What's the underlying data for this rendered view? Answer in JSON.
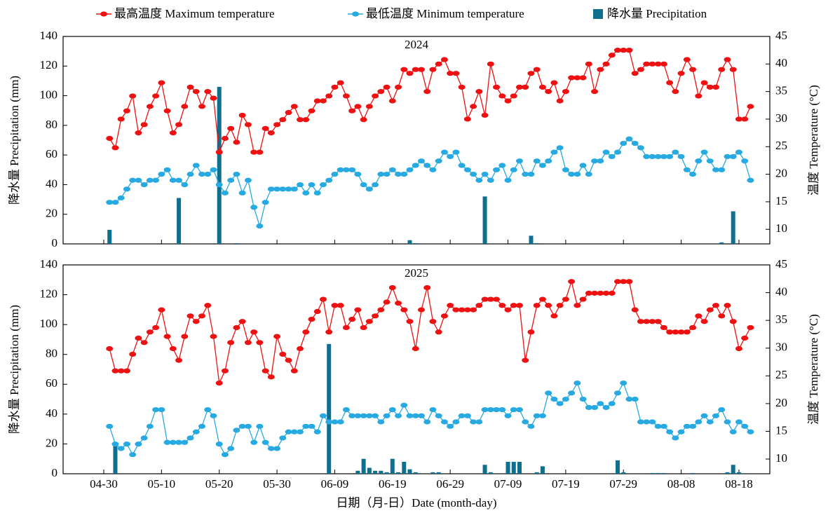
{
  "chart_data": [
    {
      "type": "combo",
      "title": "2024",
      "ylabel": "降水量 Precipitation (mm)",
      "y2label": "温度 Temperature (°C)",
      "ylim": [
        0,
        140
      ],
      "yticks": [
        0,
        20,
        40,
        60,
        80,
        100,
        120,
        140
      ],
      "y2lim": [
        7.36,
        45
      ],
      "y2ticks": [
        10,
        15,
        20,
        25,
        30,
        35,
        40,
        45
      ],
      "series": [
        {
          "name": "最高温度 Maximum temperature",
          "type": "line",
          "axis": "y2",
          "color": "#ee1111",
          "values": [
            null,
            26.5,
            24.8,
            30,
            31.5,
            34.2,
            27.5,
            29,
            32.3,
            34.2,
            36.6,
            31.5,
            27.5,
            29,
            32.3,
            35.8,
            35,
            32.3,
            35,
            33.8,
            24,
            26.5,
            28.3,
            25.8,
            30.7,
            29,
            24,
            24,
            28.3,
            27.5,
            29,
            29.9,
            31.2,
            32.3,
            29.9,
            29.9,
            31.5,
            33.3,
            33.3,
            34.2,
            35.8,
            36.6,
            34.2,
            31.5,
            32.3,
            29.9,
            32.3,
            34.2,
            35,
            35.8,
            33.3,
            35.8,
            39,
            38.3,
            39,
            39,
            35,
            39,
            40,
            40.8,
            38.3,
            38.3,
            35.8,
            30,
            32.3,
            35,
            30.7,
            40,
            35.8,
            34.2,
            33.3,
            34.2,
            35.8,
            35.8,
            38.3,
            39,
            35.8,
            35,
            36.6,
            33.3,
            35,
            37.5,
            37.5,
            37.5,
            40,
            35,
            39,
            40,
            41.6,
            42.5,
            42.5,
            42.5,
            38.3,
            39,
            40,
            40,
            40,
            40,
            36.6,
            35,
            38.3,
            40.8,
            39,
            34.2,
            36.6,
            35.8,
            35.8,
            39,
            40.8,
            39,
            30,
            30,
            32.3
          ]
        },
        {
          "name": "最低温度 Minimum temperature",
          "type": "line",
          "axis": "y2",
          "color": "#27a9e1",
          "values": [
            null,
            14.9,
            14.9,
            15.7,
            17.3,
            18.9,
            18.9,
            18.1,
            18.9,
            18.9,
            20,
            20.8,
            18.9,
            18.9,
            18.1,
            20,
            21.6,
            20,
            20,
            20.8,
            18.1,
            16.6,
            18.9,
            20,
            16.6,
            18.9,
            14,
            10.6,
            14.9,
            17.3,
            17.3,
            17.3,
            17.3,
            17.3,
            18.1,
            16.6,
            18.1,
            16.6,
            18.1,
            18.9,
            20,
            20.8,
            20.8,
            20.8,
            20,
            18.1,
            17.3,
            18.1,
            20,
            20,
            20.8,
            20,
            20,
            20.8,
            21.6,
            22.4,
            21.6,
            20.8,
            22.4,
            24,
            23.2,
            24,
            21.6,
            20.8,
            20,
            18.9,
            20,
            18.9,
            20.8,
            21.6,
            18.9,
            20.8,
            22.4,
            20,
            20,
            22.4,
            21.6,
            22.4,
            24,
            24.8,
            20.8,
            20,
            20,
            21.6,
            20,
            22.4,
            22.4,
            24,
            23.2,
            24,
            25.6,
            26.4,
            25.6,
            24.8,
            23.2,
            23.2,
            23.2,
            23.2,
            23.2,
            24,
            23.2,
            20.8,
            20,
            22.4,
            24,
            22.4,
            20.8,
            20.8,
            23.2,
            23.2,
            24,
            22.4,
            18.9
          ]
        },
        {
          "name": "降水量 Precipitation",
          "type": "bar",
          "axis": "y",
          "color": "#0e6f91",
          "values": [
            null,
            9.5,
            0,
            0,
            0,
            0,
            0,
            0,
            0,
            0,
            0,
            0,
            0,
            31,
            0,
            0,
            0,
            0,
            0,
            0,
            106,
            0,
            0,
            0.5,
            0,
            0,
            0,
            0,
            0,
            0,
            0,
            0,
            0,
            0,
            0,
            0,
            0,
            0,
            0,
            0,
            0,
            0,
            0,
            0,
            0,
            0,
            0,
            0,
            0,
            0,
            0,
            0,
            0,
            2.5,
            0.5,
            0,
            0,
            0,
            0,
            0,
            0,
            0,
            0,
            0,
            0,
            0,
            32,
            0,
            0,
            0,
            0,
            0,
            0,
            0,
            5.5,
            0.5,
            0,
            0,
            0,
            0,
            0,
            0,
            0,
            0,
            0,
            0,
            0,
            0,
            0,
            0,
            0,
            0,
            0,
            0,
            0,
            0,
            0,
            0,
            0,
            0,
            0,
            0,
            0,
            0,
            0,
            0,
            0,
            1,
            0,
            22,
            0,
            0,
            0
          ]
        }
      ]
    },
    {
      "type": "combo",
      "title": "2025",
      "ylabel": "降水量 Precipitation (mm)",
      "y2label": "温度 Temperature (°C)",
      "xlabel": "日期（月-日）Date (month-day)",
      "categories": [
        "04-30",
        null,
        null,
        null,
        null,
        null,
        null,
        null,
        null,
        null,
        "05-10",
        null,
        null,
        null,
        null,
        null,
        null,
        null,
        null,
        null,
        "05-20",
        null,
        null,
        null,
        null,
        null,
        null,
        null,
        null,
        null,
        "05-30",
        null,
        null,
        null,
        null,
        null,
        null,
        null,
        null,
        null,
        "06-09",
        null,
        null,
        null,
        null,
        null,
        null,
        null,
        null,
        null,
        "06-19",
        null,
        null,
        null,
        null,
        null,
        null,
        null,
        null,
        null,
        "06-29",
        null,
        null,
        null,
        null,
        null,
        null,
        null,
        null,
        null,
        "07-09",
        null,
        null,
        null,
        null,
        null,
        null,
        null,
        null,
        null,
        "07-19",
        null,
        null,
        null,
        null,
        null,
        null,
        null,
        null,
        null,
        "07-29",
        null,
        null,
        null,
        null,
        null,
        null,
        null,
        null,
        null,
        "08-08",
        null,
        null,
        null,
        null,
        null,
        null,
        null,
        null,
        null,
        "08-18",
        null,
        null
      ],
      "ylim": [
        0,
        140
      ],
      "yticks": [
        0,
        20,
        40,
        60,
        80,
        100,
        120,
        140
      ],
      "y2lim": [
        7.35,
        45
      ],
      "y2ticks": [
        10,
        15,
        20,
        25,
        30,
        35,
        40,
        45
      ],
      "series": [
        {
          "type": "line",
          "axis": "y2",
          "color": "#ee1111",
          "values": [
            null,
            29.9,
            25.9,
            25.9,
            25.9,
            28.9,
            31.8,
            31,
            32.9,
            33.7,
            36.9,
            32.1,
            29.9,
            27.8,
            32.1,
            35.8,
            34.8,
            35.8,
            37.7,
            32.1,
            23.7,
            25.9,
            31,
            33.7,
            34.8,
            31,
            32.9,
            31,
            25.9,
            24.8,
            32.1,
            28.9,
            27.8,
            25.9,
            29.9,
            32.9,
            35.2,
            36.6,
            38.8,
            32.9,
            37.7,
            37.7,
            33.7,
            35.2,
            36.9,
            33.7,
            34.8,
            35.8,
            36.9,
            38.3,
            40.9,
            38.1,
            36.9,
            34.8,
            29.9,
            36.9,
            40.9,
            34.8,
            32.9,
            35.8,
            37.7,
            36.9,
            36.9,
            36.9,
            36.9,
            37.7,
            38.8,
            38.8,
            38.8,
            37.7,
            36.9,
            37.7,
            37.7,
            27.8,
            32.9,
            37.7,
            38.8,
            37.7,
            35.8,
            37.7,
            38.8,
            42,
            37.7,
            38.8,
            39.9,
            39.9,
            39.9,
            39.9,
            39.9,
            42,
            42,
            42,
            36.9,
            34.8,
            34.8,
            34.8,
            34.8,
            33.7,
            32.9,
            32.9,
            32.9,
            32.9,
            33.7,
            35.8,
            34.8,
            36.9,
            37.7,
            35.8,
            37.7,
            34.8,
            29.9,
            31.8,
            33.7
          ]
        },
        {
          "type": "line",
          "axis": "y2",
          "color": "#27a9e1",
          "values": [
            null,
            15.9,
            12.7,
            11.9,
            12.7,
            10.8,
            12.7,
            13.8,
            15.9,
            18.9,
            18.9,
            13,
            13,
            13,
            13,
            13.8,
            14.9,
            15.9,
            18.9,
            17.8,
            12.7,
            10.8,
            11.9,
            15.2,
            15.9,
            15.9,
            13,
            15.9,
            13,
            11.9,
            11.9,
            13.8,
            14.9,
            14.9,
            14.9,
            15.9,
            15.9,
            14.9,
            17.8,
            16.7,
            16.7,
            16.7,
            18.9,
            17.8,
            17.8,
            17.8,
            17.8,
            17.8,
            16.7,
            17.8,
            18.9,
            17.8,
            19.7,
            17.8,
            17.8,
            17.8,
            16.7,
            18.9,
            17.8,
            16.7,
            15.9,
            16.7,
            17.8,
            17.8,
            16.7,
            16.7,
            18.9,
            18.9,
            18.9,
            18.9,
            17.8,
            18.9,
            18.9,
            16.7,
            15.9,
            17.8,
            17.8,
            21.9,
            20.8,
            20,
            20.8,
            21.9,
            23.7,
            20.8,
            19.3,
            19.3,
            20,
            19.3,
            20,
            21.9,
            23.7,
            20.8,
            20.8,
            16.7,
            16.7,
            16.7,
            15.9,
            15.9,
            14.9,
            13.8,
            14.9,
            15.9,
            15.9,
            16.7,
            17.8,
            16.7,
            17.8,
            18.9,
            16.7,
            14.9,
            16.7,
            15.9,
            14.9
          ]
        },
        {
          "type": "bar",
          "axis": "y",
          "color": "#0e6f91",
          "values": [
            null,
            0,
            20,
            0,
            0,
            0,
            0,
            0,
            0,
            0,
            0,
            0,
            0,
            0,
            0,
            0,
            0,
            0,
            0,
            0,
            0,
            0,
            0,
            0,
            0,
            0,
            0,
            0,
            0,
            0,
            0,
            0,
            0,
            0,
            0,
            0,
            0,
            0,
            0,
            87,
            0,
            0,
            0,
            0,
            2,
            10,
            4,
            2,
            2,
            1,
            10,
            1,
            8,
            3,
            1,
            0,
            0,
            1,
            1,
            0,
            0,
            0,
            0,
            0,
            0,
            0,
            6,
            1,
            0,
            0,
            8,
            8,
            8,
            0,
            0,
            1,
            5,
            0,
            0,
            0,
            0,
            0,
            0,
            0,
            0,
            0,
            0,
            0,
            0,
            9,
            1,
            0,
            0,
            0,
            0,
            0.5,
            0.5,
            0.5,
            0,
            0,
            0,
            0,
            0.5,
            0,
            0,
            0,
            0,
            0,
            1,
            6,
            1,
            0,
            0
          ]
        }
      ]
    }
  ]
}
